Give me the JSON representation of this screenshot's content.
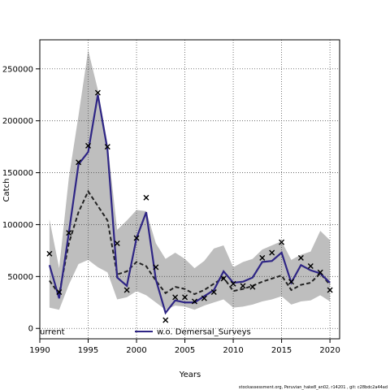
{
  "chart_data": {
    "type": "line",
    "xlabel": "Years",
    "ylabel": "Catch",
    "xlim": [
      1990,
      2021
    ],
    "ylim": [
      -10000,
      278000
    ],
    "x_ticks": [
      1990,
      1995,
      2000,
      2005,
      2010,
      2015,
      2020
    ],
    "y_ticks": [
      0,
      50000,
      100000,
      150000,
      200000,
      250000
    ],
    "grid": true,
    "legend_placement": "bottom",
    "x": [
      1991,
      1992,
      1993,
      1994,
      1995,
      1996,
      1997,
      1998,
      1999,
      2000,
      2001,
      2002,
      2003,
      2004,
      2005,
      2006,
      2007,
      2008,
      2009,
      2010,
      2011,
      2012,
      2013,
      2014,
      2015,
      2016,
      2017,
      2018,
      2019,
      2020
    ],
    "series": [
      {
        "name": "urrent",
        "style": "dashed",
        "color": "#222222",
        "values": [
          46000,
          33000,
          82000,
          112000,
          132000,
          118000,
          104000,
          52000,
          55000,
          64000,
          60000,
          46000,
          34000,
          40000,
          38000,
          33000,
          37000,
          43000,
          49000,
          36000,
          38000,
          41000,
          45000,
          48000,
          51000,
          37000,
          42000,
          44000,
          53000,
          42000
        ]
      },
      {
        "name": "w.o. Demersal_Surveys",
        "style": "solid",
        "color": "#2e2585",
        "values": [
          61000,
          29000,
          92000,
          158000,
          170000,
          225000,
          172000,
          49000,
          41000,
          87000,
          112000,
          47000,
          15000,
          27000,
          25000,
          25000,
          31000,
          37000,
          55000,
          44000,
          45000,
          49000,
          64000,
          65000,
          73000,
          44000,
          61000,
          56000,
          53000,
          44000
        ]
      },
      {
        "name": "band",
        "lower": [
          20000,
          18000,
          42000,
          62000,
          66000,
          59000,
          54000,
          28000,
          30000,
          36000,
          32000,
          25000,
          18000,
          22000,
          21000,
          18000,
          22000,
          25000,
          28000,
          20000,
          21000,
          23000,
          26000,
          28000,
          31000,
          23000,
          26000,
          27000,
          32000,
          26000
        ],
        "upper": [
          105000,
          58000,
          145000,
          205000,
          268000,
          230000,
          178000,
          95000,
          104000,
          114000,
          113000,
          82000,
          67000,
          73000,
          67000,
          58000,
          65000,
          77000,
          80000,
          59000,
          64000,
          67000,
          76000,
          80000,
          84000,
          66000,
          71000,
          74000,
          94000,
          85000
        ]
      },
      {
        "name": "observed",
        "marker": "x",
        "values": [
          72000,
          35000,
          92000,
          160000,
          176000,
          227000,
          175000,
          82000,
          37000,
          87000,
          126000,
          59000,
          8000,
          30000,
          30000,
          26000,
          29000,
          35000,
          48000,
          43000,
          41000,
          40000,
          68000,
          73000,
          83000,
          45000,
          68000,
          60000,
          54000,
          37000
        ]
      }
    ]
  },
  "footer_text": "stockassessment.org, Peruvian_hake8_an02, r14201 , git: c28bdc2a44ad"
}
